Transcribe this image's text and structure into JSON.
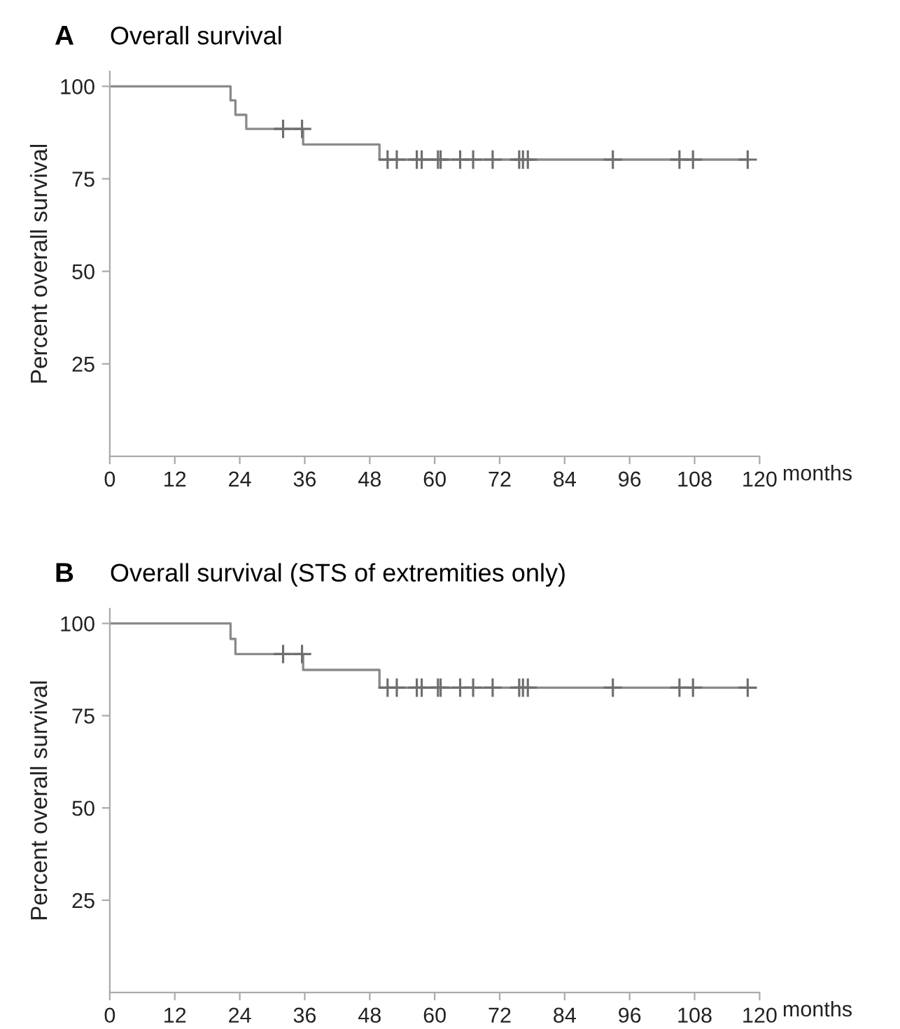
{
  "chart_data": [
    {
      "type": "step",
      "title": "Overall survival",
      "annotations": [
        "A"
      ],
      "xlabel": "months",
      "ylabel": "Percent overall survival",
      "xlim": [
        0,
        120
      ],
      "xticks": [
        0,
        12,
        24,
        36,
        48,
        60,
        72,
        84,
        96,
        108,
        120
      ],
      "ylim": [
        0,
        104
      ],
      "yticks": [
        25,
        50,
        75,
        100
      ],
      "grid": false,
      "series": [
        {
          "color": "#8a8a8a",
          "x": [
            0,
            22.3,
            23.2,
            25.2,
            35.7,
            49.8,
            117.8
          ],
          "values": [
            100,
            96.2,
            92.3,
            88.5,
            84.3,
            80.2,
            80.2
          ]
        },
        {
          "type": "scatter",
          "marker": "cross",
          "color": "#6e6e6e",
          "x": [
            32.0,
            35.5,
            51.3,
            53.0,
            56.7,
            57.6,
            60.6,
            61.1,
            64.7,
            67.1,
            70.7,
            75.6,
            76.3,
            77.2,
            92.9,
            105.2,
            107.7,
            117.8
          ],
          "values": [
            88.5,
            88.5,
            80.2,
            80.2,
            80.2,
            80.2,
            80.2,
            80.2,
            80.2,
            80.2,
            80.2,
            80.2,
            80.2,
            80.2,
            80.2,
            80.2,
            80.2,
            80.2
          ]
        }
      ]
    },
    {
      "type": "step",
      "title": "Overall survival (STS of extremities only)",
      "annotations": [
        "B"
      ],
      "xlabel": "months",
      "ylabel": "Percent overall survival",
      "xlim": [
        0,
        120
      ],
      "xticks": [
        0,
        12,
        24,
        36,
        48,
        60,
        72,
        84,
        96,
        108,
        120
      ],
      "ylim": [
        0,
        104
      ],
      "yticks": [
        25,
        50,
        75,
        100
      ],
      "grid": false,
      "series": [
        {
          "color": "#8a8a8a",
          "x": [
            0,
            22.3,
            23.2,
            35.7,
            49.8,
            117.8
          ],
          "values": [
            100,
            95.8,
            91.7,
            87.4,
            82.6,
            82.6
          ]
        },
        {
          "type": "scatter",
          "marker": "cross",
          "color": "#6e6e6e",
          "x": [
            32.0,
            35.5,
            51.3,
            53.0,
            56.7,
            57.6,
            60.6,
            61.1,
            64.7,
            67.1,
            70.7,
            75.6,
            76.3,
            77.2,
            92.9,
            105.2,
            107.7,
            117.8
          ],
          "values": [
            91.7,
            91.7,
            82.6,
            82.6,
            82.6,
            82.6,
            82.6,
            82.6,
            82.6,
            82.6,
            82.6,
            82.6,
            82.6,
            82.6,
            82.6,
            82.6,
            82.6,
            82.6
          ]
        }
      ]
    }
  ]
}
